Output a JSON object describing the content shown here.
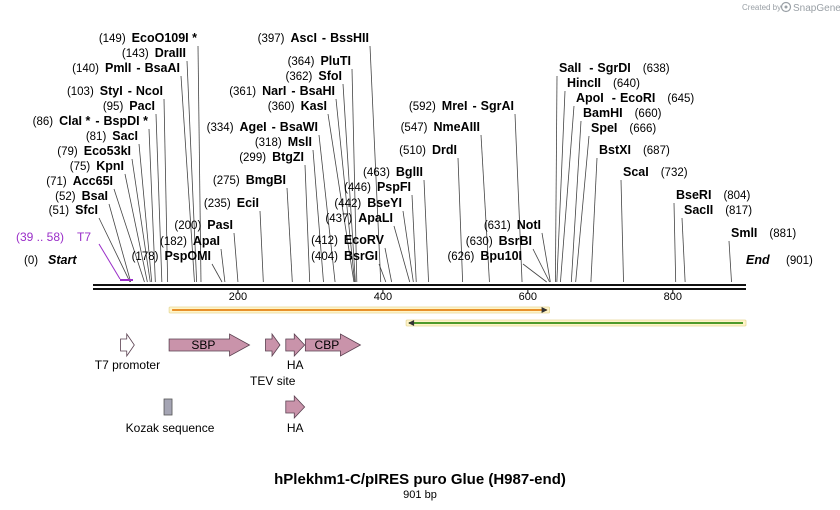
{
  "header": {
    "credit_prefix": "Created by",
    "brand_name": "SnapGene"
  },
  "map": {
    "title": "hPlekhm1-C/pIRES puro Glue (H987-end)",
    "length_label": "901 bp",
    "total_bp": 901
  },
  "ends": {
    "start": {
      "pos": "(0)",
      "label": "Start"
    },
    "end": {
      "pos": "(901)",
      "label": "End"
    }
  },
  "primer": {
    "range": "(39 .. 58)",
    "name": "T7",
    "start": 39,
    "end": 58
  },
  "ruler": {
    "ticks": [
      {
        "bp": 200,
        "label": "200"
      },
      {
        "bp": 400,
        "label": "400"
      },
      {
        "bp": 600,
        "label": "600"
      },
      {
        "bp": 800,
        "label": "800"
      }
    ]
  },
  "orfs": [
    {
      "name": "orf-forward",
      "start": 105,
      "end": 630,
      "direction": "forward",
      "color": "#e8912a"
    },
    {
      "name": "orf-reverse",
      "start": 432,
      "end": 901,
      "direction": "reverse",
      "color": "#4e9a2b"
    }
  ],
  "features": [
    {
      "name": "T7 promoter",
      "start": 38,
      "end": 57,
      "direction": "forward",
      "row": 1,
      "color": "#ffffff",
      "label_pos": "below"
    },
    {
      "name": "SBP",
      "start": 105,
      "end": 216,
      "direction": "forward",
      "row": 1,
      "color": "#c993aa",
      "label_pos": "inside"
    },
    {
      "name": "TEV site",
      "start": 238,
      "end": 258,
      "direction": "forward",
      "row": 1,
      "color": "#c993aa",
      "label_pos": "below2"
    },
    {
      "name": "HA",
      "start": 266,
      "end": 292,
      "direction": "forward",
      "row": 1,
      "color": "#c993aa",
      "label_pos": "below"
    },
    {
      "name": "CBP",
      "start": 293,
      "end": 369,
      "direction": "forward",
      "row": 1,
      "color": "#c993aa",
      "label_pos": "inside"
    },
    {
      "name": "Kozak sequence",
      "start": 98,
      "end": 109,
      "direction": "none",
      "row": 2,
      "color": "#a5a5b4",
      "label_pos": "below"
    },
    {
      "name": "HA",
      "start": 266,
      "end": 292,
      "direction": "forward",
      "row": 2,
      "color": "#c993aa",
      "label_pos": "below"
    }
  ],
  "enzymes": [
    {
      "pos": "(149)",
      "name": "EcoO109I",
      "mark": " *",
      "bp": 149
    },
    {
      "pos": "(143)",
      "name": "DraIII",
      "bp": 143
    },
    {
      "pos": "(140)",
      "name": "PmlI",
      "name2": "BsaAI",
      "bp": 140
    },
    {
      "pos": "(103)",
      "name": "StyI",
      "name2": "NcoI",
      "bp": 103
    },
    {
      "pos": "(95)",
      "name": "PacI",
      "bp": 95
    },
    {
      "pos": "(86)",
      "name": "ClaI",
      "mark": " *",
      "name2": "BspDI",
      "mark2": " *",
      "bp": 86
    },
    {
      "pos": "(81)",
      "name": "SacI",
      "bp": 81
    },
    {
      "pos": "(79)",
      "name": "Eco53kI",
      "bp": 79
    },
    {
      "pos": "(75)",
      "name": "KpnI",
      "bp": 75
    },
    {
      "pos": "(71)",
      "name": "Acc65I",
      "bp": 71
    },
    {
      "pos": "(52)",
      "name": "BsaI",
      "bp": 52
    },
    {
      "pos": "(51)",
      "name": "SfcI",
      "bp": 51
    },
    {
      "pos": "(178)",
      "name": "PspOMI",
      "bp": 178
    },
    {
      "pos": "(182)",
      "name": "ApaI",
      "bp": 182
    },
    {
      "pos": "(200)",
      "name": "PasI",
      "bp": 200
    },
    {
      "pos": "(235)",
      "name": "EciI",
      "bp": 235
    },
    {
      "pos": "(275)",
      "name": "BmgBI",
      "bp": 275
    },
    {
      "pos": "(299)",
      "name": "BtgZI",
      "bp": 299
    },
    {
      "pos": "(318)",
      "name": "MslI",
      "bp": 318
    },
    {
      "pos": "(334)",
      "name": "AgeI",
      "name2": "BsaWI",
      "bp": 334
    },
    {
      "pos": "(360)",
      "name": "KasI",
      "bp": 360
    },
    {
      "pos": "(361)",
      "name": "NarI",
      "name2": "BsaHI",
      "bp": 361
    },
    {
      "pos": "(362)",
      "name": "SfoI",
      "bp": 362
    },
    {
      "pos": "(364)",
      "name": "PluTI",
      "bp": 364
    },
    {
      "pos": "(397)",
      "name": "AscI",
      "name2": "BssHII",
      "bp": 397
    },
    {
      "pos": "(404)",
      "name": "BsrGI",
      "bp": 404
    },
    {
      "pos": "(412)",
      "name": "EcoRV",
      "bp": 412
    },
    {
      "pos": "(437)",
      "name": "ApaLI",
      "bp": 437
    },
    {
      "pos": "(442)",
      "name": "BseYI",
      "bp": 442
    },
    {
      "pos": "(446)",
      "name": "PspFI",
      "bp": 446
    },
    {
      "pos": "(463)",
      "name": "BglII",
      "bp": 463
    },
    {
      "pos": "(510)",
      "name": "DrdI",
      "bp": 510
    },
    {
      "pos": "(547)",
      "name": "NmeAIII",
      "bp": 547
    },
    {
      "pos": "(592)",
      "name": "MreI",
      "name2": "SgrAI",
      "bp": 592
    },
    {
      "pos": "(626)",
      "name": "Bpu10I",
      "bp": 626
    },
    {
      "pos": "(630)",
      "name": "BsrBI",
      "bp": 630
    },
    {
      "pos": "(631)",
      "name": "NotI",
      "bp": 631
    },
    {
      "name": "SalI",
      "name2": "SgrDI",
      "pos": "(638)",
      "bp": 638
    },
    {
      "name": "HincII",
      "pos": "(640)",
      "bp": 640
    },
    {
      "name": "ApoI",
      "name2": "EcoRI",
      "pos": "(645)",
      "bp": 645
    },
    {
      "name": "BamHI",
      "pos": "(660)",
      "bp": 660
    },
    {
      "name": "SpeI",
      "pos": "(666)",
      "bp": 666
    },
    {
      "name": "BstXI",
      "pos": "(687)",
      "bp": 687
    },
    {
      "name": "ScaI",
      "pos": "(732)",
      "bp": 732
    },
    {
      "name": "BseRI",
      "pos": "(804)",
      "bp": 804
    },
    {
      "name": "SacII",
      "pos": "(817)",
      "bp": 817
    },
    {
      "name": "SmlI",
      "pos": "(881)",
      "bp": 881
    }
  ]
}
